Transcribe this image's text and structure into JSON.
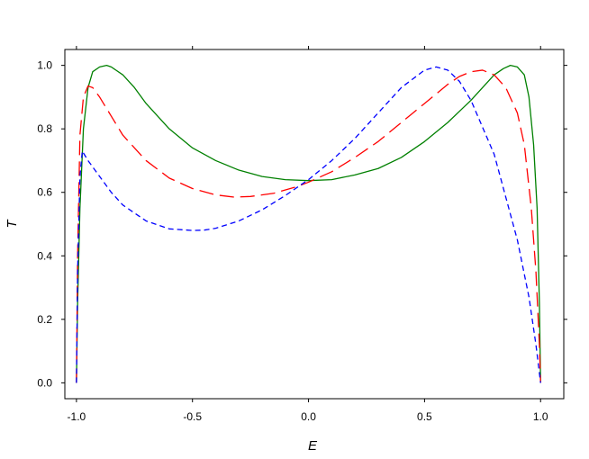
{
  "chart_data": {
    "type": "line",
    "xlabel": "E",
    "ylabel": "T",
    "xlim": [
      -1.05,
      1.1
    ],
    "ylim": [
      -0.05,
      1.05
    ],
    "xticks": [
      -1.0,
      -0.5,
      0.0,
      0.5,
      1.0
    ],
    "xtick_labels": [
      "-1.0",
      "-0.5",
      "0.0",
      "0.5",
      "1.0"
    ],
    "yticks": [
      0.0,
      0.2,
      0.4,
      0.6,
      0.8,
      1.0
    ],
    "ytick_labels": [
      "0.0",
      "0.2",
      "0.4",
      "0.6",
      "0.8",
      "1.0"
    ],
    "grid": false,
    "series": [
      {
        "color": "#008000",
        "dash": "solid",
        "x": [
          -1.0,
          -0.995,
          -0.985,
          -0.97,
          -0.95,
          -0.93,
          -0.9,
          -0.87,
          -0.85,
          -0.8,
          -0.75,
          -0.7,
          -0.6,
          -0.5,
          -0.4,
          -0.3,
          -0.2,
          -0.1,
          0.0,
          0.1,
          0.2,
          0.3,
          0.4,
          0.5,
          0.6,
          0.7,
          0.75,
          0.8,
          0.84,
          0.87,
          0.9,
          0.93,
          0.95,
          0.97,
          0.985,
          0.995,
          1.0
        ],
        "y": [
          0.0,
          0.25,
          0.55,
          0.8,
          0.93,
          0.98,
          0.995,
          1.0,
          0.995,
          0.97,
          0.93,
          0.88,
          0.8,
          0.74,
          0.7,
          0.67,
          0.65,
          0.64,
          0.637,
          0.64,
          0.655,
          0.675,
          0.71,
          0.76,
          0.82,
          0.89,
          0.93,
          0.97,
          0.99,
          1.0,
          0.995,
          0.97,
          0.9,
          0.75,
          0.55,
          0.25,
          0.0
        ]
      },
      {
        "color": "#ff0000",
        "dash": "long-dash",
        "x": [
          -1.0,
          -0.995,
          -0.985,
          -0.97,
          -0.95,
          -0.93,
          -0.9,
          -0.85,
          -0.8,
          -0.7,
          -0.6,
          -0.5,
          -0.4,
          -0.32,
          -0.25,
          -0.15,
          -0.05,
          0.0,
          0.1,
          0.2,
          0.3,
          0.4,
          0.5,
          0.6,
          0.65,
          0.7,
          0.75,
          0.8,
          0.85,
          0.9,
          0.93,
          0.96,
          0.98,
          0.995,
          1.0
        ],
        "y": [
          0.0,
          0.4,
          0.78,
          0.9,
          0.935,
          0.93,
          0.9,
          0.84,
          0.78,
          0.7,
          0.645,
          0.612,
          0.592,
          0.585,
          0.587,
          0.597,
          0.618,
          0.632,
          0.665,
          0.71,
          0.76,
          0.82,
          0.88,
          0.94,
          0.965,
          0.98,
          0.985,
          0.97,
          0.93,
          0.85,
          0.75,
          0.55,
          0.35,
          0.12,
          0.0
        ]
      },
      {
        "color": "#0000ff",
        "dash": "short-dash",
        "x": [
          -1.0,
          -0.995,
          -0.985,
          -0.975,
          -0.95,
          -0.9,
          -0.85,
          -0.8,
          -0.7,
          -0.6,
          -0.5,
          -0.45,
          -0.4,
          -0.3,
          -0.2,
          -0.1,
          0.0,
          0.1,
          0.2,
          0.3,
          0.4,
          0.5,
          0.55,
          0.6,
          0.65,
          0.7,
          0.8,
          0.9,
          0.95,
          0.98,
          1.0
        ],
        "y": [
          0.0,
          0.35,
          0.65,
          0.73,
          0.7,
          0.65,
          0.6,
          0.56,
          0.51,
          0.485,
          0.48,
          0.481,
          0.487,
          0.51,
          0.545,
          0.59,
          0.64,
          0.7,
          0.77,
          0.85,
          0.93,
          0.985,
          0.995,
          0.985,
          0.95,
          0.89,
          0.72,
          0.45,
          0.27,
          0.12,
          0.0
        ]
      }
    ]
  }
}
